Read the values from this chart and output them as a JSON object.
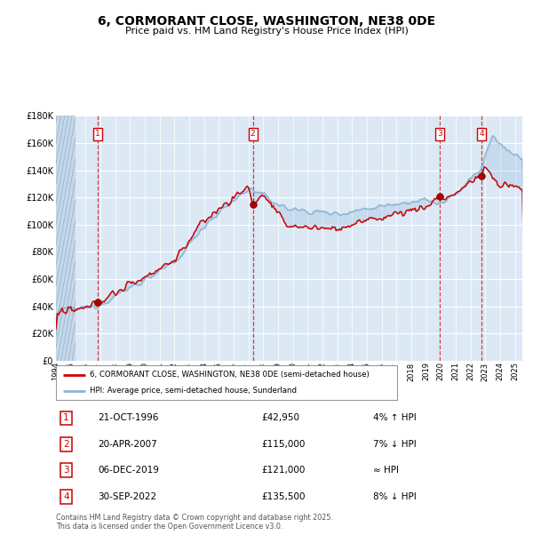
{
  "title": "6, CORMORANT CLOSE, WASHINGTON, NE38 0DE",
  "subtitle": "Price paid vs. HM Land Registry's House Price Index (HPI)",
  "background_color": "#dce9f5",
  "plot_bg_color": "#dce9f5",
  "grid_color": "#ffffff",
  "red_line_color": "#cc0000",
  "blue_line_color": "#8ab4d4",
  "ylim": [
    0,
    180000
  ],
  "yticks": [
    0,
    20000,
    40000,
    60000,
    80000,
    100000,
    120000,
    140000,
    160000,
    180000
  ],
  "year_start": 1994,
  "year_end": 2025,
  "transactions": [
    {
      "num": 1,
      "date": "21-OCT-1996",
      "price": 42950,
      "year": 1996.8
    },
    {
      "num": 2,
      "date": "20-APR-2007",
      "price": 115000,
      "year": 2007.3
    },
    {
      "num": 3,
      "date": "06-DEC-2019",
      "price": 121000,
      "year": 2019.92
    },
    {
      "num": 4,
      "date": "30-SEP-2022",
      "price": 135500,
      "year": 2022.75
    }
  ],
  "legend_label_red": "6, CORMORANT CLOSE, WASHINGTON, NE38 0DE (semi-detached house)",
  "legend_label_blue": "HPI: Average price, semi-detached house, Sunderland",
  "footer": "Contains HM Land Registry data © Crown copyright and database right 2025.\nThis data is licensed under the Open Government Licence v3.0.",
  "table_rows": [
    [
      "1",
      "21-OCT-1996",
      "£42,950",
      "4% ↑ HPI"
    ],
    [
      "2",
      "20-APR-2007",
      "£115,000",
      "7% ↓ HPI"
    ],
    [
      "3",
      "06-DEC-2019",
      "£121,000",
      "≈ HPI"
    ],
    [
      "4",
      "30-SEP-2022",
      "£135,500",
      "8% ↓ HPI"
    ]
  ]
}
